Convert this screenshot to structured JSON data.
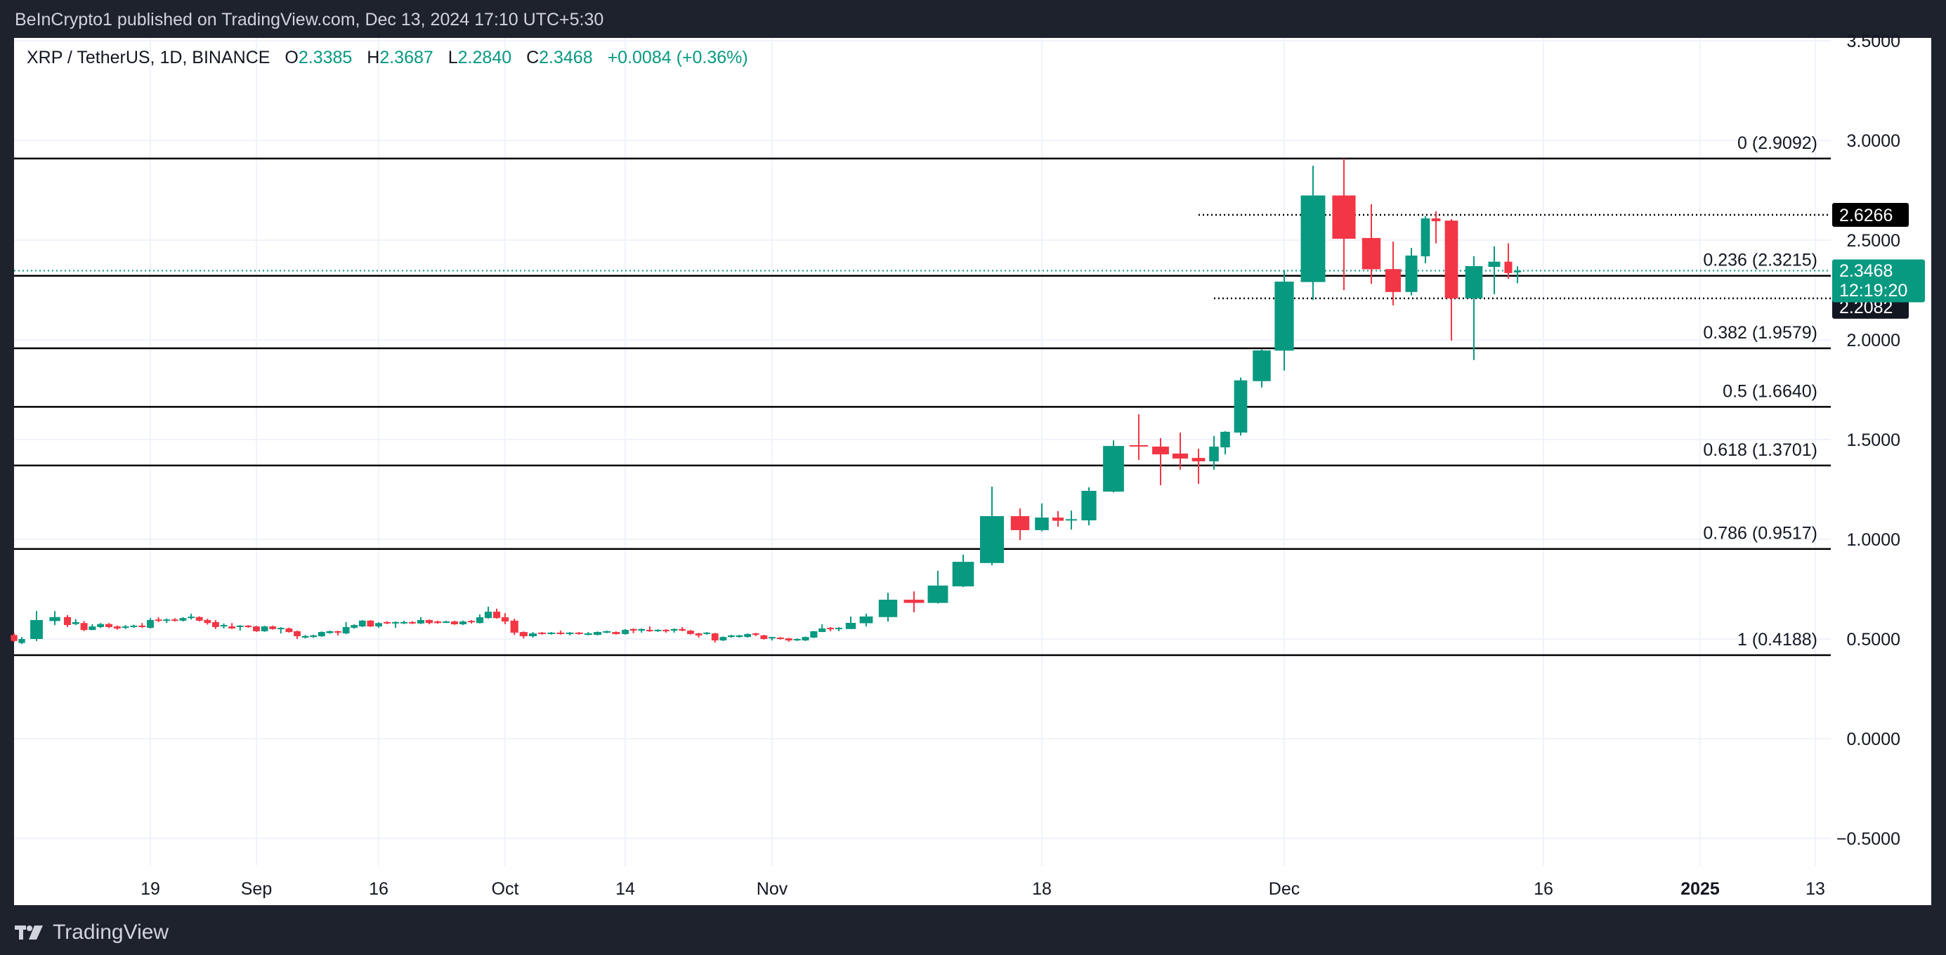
{
  "header": {
    "published_text": "BeInCrypto1 published on TradingView.com, Dec 13, 2024 17:10 UTC+5:30"
  },
  "legend": {
    "symbol": "XRP / TetherUS, 1D, BINANCE",
    "open_label": "O",
    "open": "2.3385",
    "high_label": "H",
    "high": "2.3687",
    "low_label": "L",
    "low": "2.2840",
    "close_label": "C",
    "close": "2.3468",
    "change": "+0.0084 (+0.36%)"
  },
  "footer": {
    "brand": "TradingView"
  },
  "colors": {
    "up": "#089981",
    "down": "#f23645",
    "background": "#1e222d",
    "grid": "#f0f3fa",
    "fib_line": "#000000"
  },
  "chart_data": {
    "type": "candlestick",
    "title": "",
    "ylim": [
      -0.6,
      3.55
    ],
    "grid": true,
    "price_ticks": [
      "3.5000",
      "3.0000",
      "2.5000",
      "2.0000",
      "1.5000",
      "1.0000",
      "0.5000",
      "0.0000",
      "−0.5000"
    ],
    "price_tick_values": [
      3.5,
      3.0,
      2.5,
      2.0,
      1.5,
      1.0,
      0.5,
      0.0,
      -0.5
    ],
    "time_ticks": [
      {
        "label": "19",
        "date": "2024-08-19"
      },
      {
        "label": "Sep",
        "date": "2024-09-01"
      },
      {
        "label": "16",
        "date": "2024-09-16"
      },
      {
        "label": "Oct",
        "date": "2024-10-01"
      },
      {
        "label": "14",
        "date": "2024-10-14"
      },
      {
        "label": "Nov",
        "date": "2024-11-01"
      },
      {
        "label": "18",
        "date": "2024-11-18"
      },
      {
        "label": "Dec",
        "date": "2024-12-01"
      },
      {
        "label": "16",
        "date": "2024-12-16"
      },
      {
        "label": "2025",
        "date": "2025-01-01"
      },
      {
        "label": "13",
        "date": "2025-01-13"
      }
    ],
    "fib_levels": [
      {
        "label": "0 (2.9092)",
        "value": 2.9092
      },
      {
        "label": "0.236 (2.3215)",
        "value": 2.3215
      },
      {
        "label": "0.382 (1.9579)",
        "value": 1.9579
      },
      {
        "label": "0.5 (1.6640)",
        "value": 1.664
      },
      {
        "label": "0.618 (1.3701)",
        "value": 1.3701
      },
      {
        "label": "0.786 (0.9517)",
        "value": 0.9517
      },
      {
        "label": "1 (0.4188)",
        "value": 0.4188
      }
    ],
    "horizontal_levels": [
      {
        "label": "2.6266",
        "value": 2.6266,
        "start_date": "2024-11-26"
      },
      {
        "label": "2.2082",
        "value": 2.2082,
        "start_date": "2024-11-27"
      }
    ],
    "last_price": {
      "label": "2.3468",
      "value": 2.3468,
      "countdown": "12:19:20"
    },
    "columns": [
      "date",
      "open",
      "high",
      "low",
      "close"
    ],
    "candles": [
      [
        "2024-08-05",
        0.52,
        0.53,
        0.485,
        0.49
      ],
      [
        "2024-08-06",
        0.48,
        0.51,
        0.475,
        0.5
      ],
      [
        "2024-08-07",
        0.5,
        0.64,
        0.49,
        0.595
      ],
      [
        "2024-08-08",
        0.59,
        0.64,
        0.57,
        0.61
      ],
      [
        "2024-08-09",
        0.61,
        0.62,
        0.56,
        0.57
      ],
      [
        "2024-08-10",
        0.575,
        0.6,
        0.57,
        0.585
      ],
      [
        "2024-08-11",
        0.58,
        0.59,
        0.54,
        0.545
      ],
      [
        "2024-08-12",
        0.545,
        0.574,
        0.545,
        0.563
      ],
      [
        "2024-08-13",
        0.56,
        0.58,
        0.555,
        0.575
      ],
      [
        "2024-08-14",
        0.575,
        0.58,
        0.555,
        0.56
      ],
      [
        "2024-08-15",
        0.563,
        0.568,
        0.546,
        0.553
      ],
      [
        "2024-08-16",
        0.556,
        0.57,
        0.55,
        0.563
      ],
      [
        "2024-08-17",
        0.56,
        0.572,
        0.556,
        0.567
      ],
      [
        "2024-08-18",
        0.567,
        0.58,
        0.556,
        0.56
      ],
      [
        "2024-08-19",
        0.556,
        0.605,
        0.553,
        0.595
      ],
      [
        "2024-08-20",
        0.598,
        0.61,
        0.585,
        0.592
      ],
      [
        "2024-08-21",
        0.592,
        0.603,
        0.58,
        0.598
      ],
      [
        "2024-08-22",
        0.598,
        0.605,
        0.588,
        0.592
      ],
      [
        "2024-08-23",
        0.592,
        0.61,
        0.588,
        0.605
      ],
      [
        "2024-08-24",
        0.605,
        0.627,
        0.598,
        0.612
      ],
      [
        "2024-08-25",
        0.61,
        0.614,
        0.588,
        0.592
      ],
      [
        "2024-08-26",
        0.595,
        0.602,
        0.572,
        0.58
      ],
      [
        "2024-08-27",
        0.585,
        0.595,
        0.55,
        0.56
      ],
      [
        "2024-08-28",
        0.563,
        0.578,
        0.553,
        0.57
      ],
      [
        "2024-08-29",
        0.563,
        0.58,
        0.55,
        0.553
      ],
      [
        "2024-08-30",
        0.56,
        0.57,
        0.542,
        0.567
      ],
      [
        "2024-08-31",
        0.567,
        0.57,
        0.556,
        0.56
      ],
      [
        "2024-09-01",
        0.563,
        0.566,
        0.536,
        0.539
      ],
      [
        "2024-09-02",
        0.539,
        0.566,
        0.536,
        0.563
      ],
      [
        "2024-09-03",
        0.563,
        0.567,
        0.547,
        0.55
      ],
      [
        "2024-09-04",
        0.55,
        0.559,
        0.528,
        0.556
      ],
      [
        "2024-09-05",
        0.553,
        0.557,
        0.532,
        0.535
      ],
      [
        "2024-09-06",
        0.539,
        0.542,
        0.5,
        0.514
      ],
      [
        "2024-09-07",
        0.507,
        0.52,
        0.503,
        0.515
      ],
      [
        "2024-09-08",
        0.51,
        0.522,
        0.506,
        0.518
      ],
      [
        "2024-09-09",
        0.514,
        0.538,
        0.511,
        0.535
      ],
      [
        "2024-09-10",
        0.53,
        0.542,
        0.527,
        0.539
      ],
      [
        "2024-09-11",
        0.539,
        0.542,
        0.518,
        0.532
      ],
      [
        "2024-09-12",
        0.528,
        0.585,
        0.525,
        0.56
      ],
      [
        "2024-09-13",
        0.556,
        0.574,
        0.552,
        0.57
      ],
      [
        "2024-09-14",
        0.563,
        0.595,
        0.56,
        0.592
      ],
      [
        "2024-09-15",
        0.592,
        0.595,
        0.56,
        0.563
      ],
      [
        "2024-09-16",
        0.563,
        0.584,
        0.556,
        0.58
      ],
      [
        "2024-09-17",
        0.585,
        0.589,
        0.575,
        0.578
      ],
      [
        "2024-09-18",
        0.578,
        0.588,
        0.556,
        0.585
      ],
      [
        "2024-09-19",
        0.578,
        0.592,
        0.575,
        0.585
      ],
      [
        "2024-09-20",
        0.585,
        0.589,
        0.575,
        0.578
      ],
      [
        "2024-09-21",
        0.578,
        0.61,
        0.575,
        0.595
      ],
      [
        "2024-09-22",
        0.595,
        0.598,
        0.574,
        0.58
      ],
      [
        "2024-09-23",
        0.588,
        0.592,
        0.577,
        0.58
      ],
      [
        "2024-09-24",
        0.583,
        0.591,
        0.58,
        0.588
      ],
      [
        "2024-09-25",
        0.588,
        0.592,
        0.571,
        0.574
      ],
      [
        "2024-09-26",
        0.574,
        0.592,
        0.57,
        0.588
      ],
      [
        "2024-09-27",
        0.591,
        0.595,
        0.578,
        0.584
      ],
      [
        "2024-09-28",
        0.58,
        0.623,
        0.578,
        0.609
      ],
      [
        "2024-09-29",
        0.605,
        0.662,
        0.602,
        0.637
      ],
      [
        "2024-09-30",
        0.637,
        0.652,
        0.602,
        0.605
      ],
      [
        "2024-10-01",
        0.609,
        0.63,
        0.574,
        0.588
      ],
      [
        "2024-10-02",
        0.592,
        0.602,
        0.52,
        0.532
      ],
      [
        "2024-10-03",
        0.535,
        0.538,
        0.503,
        0.514
      ],
      [
        "2024-10-04",
        0.514,
        0.535,
        0.507,
        0.528
      ],
      [
        "2024-10-05",
        0.532,
        0.535,
        0.522,
        0.525
      ],
      [
        "2024-10-06",
        0.525,
        0.535,
        0.522,
        0.532
      ],
      [
        "2024-10-07",
        0.532,
        0.542,
        0.522,
        0.525
      ],
      [
        "2024-10-08",
        0.525,
        0.535,
        0.518,
        0.532
      ],
      [
        "2024-10-09",
        0.532,
        0.535,
        0.522,
        0.525
      ],
      [
        "2024-10-10",
        0.521,
        0.535,
        0.518,
        0.528
      ],
      [
        "2024-10-11",
        0.521,
        0.538,
        0.518,
        0.535
      ],
      [
        "2024-10-12",
        0.532,
        0.542,
        0.529,
        0.539
      ],
      [
        "2024-10-13",
        0.535,
        0.538,
        0.522,
        0.525
      ],
      [
        "2024-10-14",
        0.525,
        0.55,
        0.522,
        0.546
      ],
      [
        "2024-10-15",
        0.55,
        0.553,
        0.529,
        0.542
      ],
      [
        "2024-10-16",
        0.542,
        0.553,
        0.532,
        0.55
      ],
      [
        "2024-10-17",
        0.546,
        0.563,
        0.536,
        0.539
      ],
      [
        "2024-10-18",
        0.539,
        0.549,
        0.536,
        0.546
      ],
      [
        "2024-10-19",
        0.546,
        0.549,
        0.532,
        0.539
      ],
      [
        "2024-10-20",
        0.542,
        0.553,
        0.532,
        0.55
      ],
      [
        "2024-10-21",
        0.55,
        0.56,
        0.539,
        0.542
      ],
      [
        "2024-10-22",
        0.542,
        0.545,
        0.522,
        0.525
      ],
      [
        "2024-10-23",
        0.528,
        0.531,
        0.507,
        0.518
      ],
      [
        "2024-10-24",
        0.525,
        0.535,
        0.522,
        0.532
      ],
      [
        "2024-10-25",
        0.528,
        0.531,
        0.482,
        0.493
      ],
      [
        "2024-10-26",
        0.493,
        0.513,
        0.49,
        0.51
      ],
      [
        "2024-10-27",
        0.51,
        0.521,
        0.507,
        0.518
      ],
      [
        "2024-10-28",
        0.51,
        0.521,
        0.507,
        0.518
      ],
      [
        "2024-10-29",
        0.51,
        0.528,
        0.507,
        0.525
      ],
      [
        "2024-10-30",
        0.528,
        0.531,
        0.514,
        0.521
      ],
      [
        "2024-10-31",
        0.518,
        0.521,
        0.497,
        0.5
      ],
      [
        "2024-11-01",
        0.503,
        0.51,
        0.493,
        0.51
      ],
      [
        "2024-11-02",
        0.507,
        0.51,
        0.497,
        0.5
      ],
      [
        "2024-11-03",
        0.503,
        0.506,
        0.486,
        0.493
      ],
      [
        "2024-11-04",
        0.493,
        0.503,
        0.49,
        0.5
      ],
      [
        "2024-11-05",
        0.493,
        0.512,
        0.49,
        0.51
      ],
      [
        "2024-11-06",
        0.507,
        0.54,
        0.505,
        0.539
      ],
      [
        "2024-11-07",
        0.535,
        0.574,
        0.535,
        0.553
      ],
      [
        "2024-11-08",
        0.556,
        0.56,
        0.539,
        0.55
      ],
      [
        "2024-11-09",
        0.55,
        0.56,
        0.539,
        0.556
      ],
      [
        "2024-11-10",
        0.55,
        0.613,
        0.55,
        0.581
      ],
      [
        "2024-11-11",
        0.579,
        0.627,
        0.563,
        0.613
      ],
      [
        "2024-11-12",
        0.61,
        0.732,
        0.588,
        0.697
      ],
      [
        "2024-11-13",
        0.697,
        0.739,
        0.634,
        0.681
      ],
      [
        "2024-11-14",
        0.681,
        0.842,
        0.678,
        0.768
      ],
      [
        "2024-11-15",
        0.764,
        0.923,
        0.76,
        0.887
      ],
      [
        "2024-11-16",
        0.881,
        1.264,
        0.87,
        1.116
      ],
      [
        "2024-11-17",
        1.116,
        1.155,
        0.996,
        1.046
      ],
      [
        "2024-11-18",
        1.046,
        1.18,
        1.04,
        1.109
      ],
      [
        "2024-11-19",
        1.109,
        1.141,
        1.063,
        1.093
      ],
      [
        "2024-11-20",
        1.097,
        1.144,
        1.049,
        1.101
      ],
      [
        "2024-11-21",
        1.095,
        1.261,
        1.07,
        1.243
      ],
      [
        "2024-11-22",
        1.239,
        1.496,
        1.235,
        1.468
      ],
      [
        "2024-11-23",
        1.472,
        1.627,
        1.398,
        1.465
      ],
      [
        "2024-11-24",
        1.465,
        1.507,
        1.271,
        1.426
      ],
      [
        "2024-11-25",
        1.43,
        1.535,
        1.349,
        1.405
      ],
      [
        "2024-11-26",
        1.408,
        1.454,
        1.278,
        1.391
      ],
      [
        "2024-11-27",
        1.391,
        1.518,
        1.349,
        1.465
      ],
      [
        "2024-11-28",
        1.461,
        1.542,
        1.426,
        1.539
      ],
      [
        "2024-11-29",
        1.535,
        1.811,
        1.52,
        1.797
      ],
      [
        "2024-11-30",
        1.793,
        1.954,
        1.761,
        1.947
      ],
      [
        "2024-12-01",
        1.946,
        2.349,
        1.846,
        2.292
      ],
      [
        "2024-12-02",
        2.29,
        2.873,
        2.2,
        2.724
      ],
      [
        "2024-12-03",
        2.724,
        2.909,
        2.249,
        2.507
      ],
      [
        "2024-12-04",
        2.511,
        2.68,
        2.281,
        2.354
      ],
      [
        "2024-12-05",
        2.355,
        2.493,
        2.173,
        2.24
      ],
      [
        "2024-12-06",
        2.24,
        2.461,
        2.223,
        2.423
      ],
      [
        "2024-12-07",
        2.419,
        2.621,
        2.384,
        2.609
      ],
      [
        "2024-12-08",
        2.609,
        2.645,
        2.484,
        2.595
      ],
      [
        "2024-12-09",
        2.598,
        2.605,
        1.996,
        2.208
      ],
      [
        "2024-12-10",
        2.208,
        2.419,
        1.899,
        2.37
      ],
      [
        "2024-12-11",
        2.366,
        2.469,
        2.229,
        2.392
      ],
      [
        "2024-12-12",
        2.392,
        2.484,
        2.306,
        2.335
      ],
      [
        "2024-12-13",
        2.3385,
        2.3687,
        2.284,
        2.3468
      ]
    ]
  }
}
